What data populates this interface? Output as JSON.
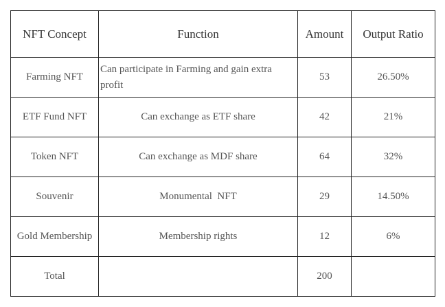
{
  "table": {
    "headers": [
      "NFT Concept",
      "Function",
      "Amount",
      "Output Ratio"
    ],
    "rows": [
      [
        "Farming NFT",
        "Can participate in Farming and gain extra profit",
        "53",
        "26.50%"
      ],
      [
        "ETF Fund NFT",
        "Can exchange as ETF share",
        "42",
        "21%"
      ],
      [
        "Token NFT",
        "Can exchange as MDF share",
        "64",
        "32%"
      ],
      [
        "Souvenir",
        "Monumental  NFT",
        "29",
        "14.50%"
      ],
      [
        "Gold Membership",
        "Membership rights",
        "12",
        "6%"
      ],
      [
        "Total",
        null,
        "200",
        null
      ]
    ]
  }
}
